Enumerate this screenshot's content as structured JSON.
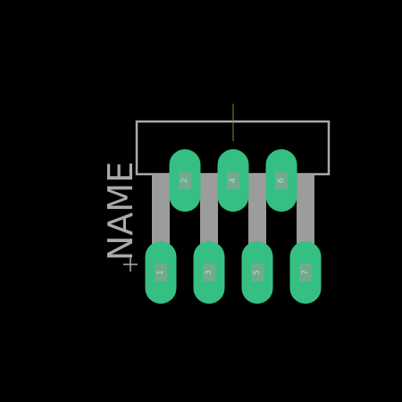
{
  "component": {
    "name": "NAME"
  },
  "pins": [
    {
      "number": "1",
      "row": "bottom"
    },
    {
      "number": "2",
      "row": "top"
    },
    {
      "number": "3",
      "row": "bottom"
    },
    {
      "number": "4",
      "row": "top"
    },
    {
      "number": "5",
      "row": "bottom"
    },
    {
      "number": "6",
      "row": "top"
    },
    {
      "number": "7",
      "row": "bottom"
    }
  ],
  "colors": {
    "background": "#000000",
    "outline": "#aaaaaa",
    "leads": "#9c9c9c",
    "pads": "#36bf82",
    "pad_label": "#d0d0d0",
    "origin_cross": "#8a8a2a"
  }
}
